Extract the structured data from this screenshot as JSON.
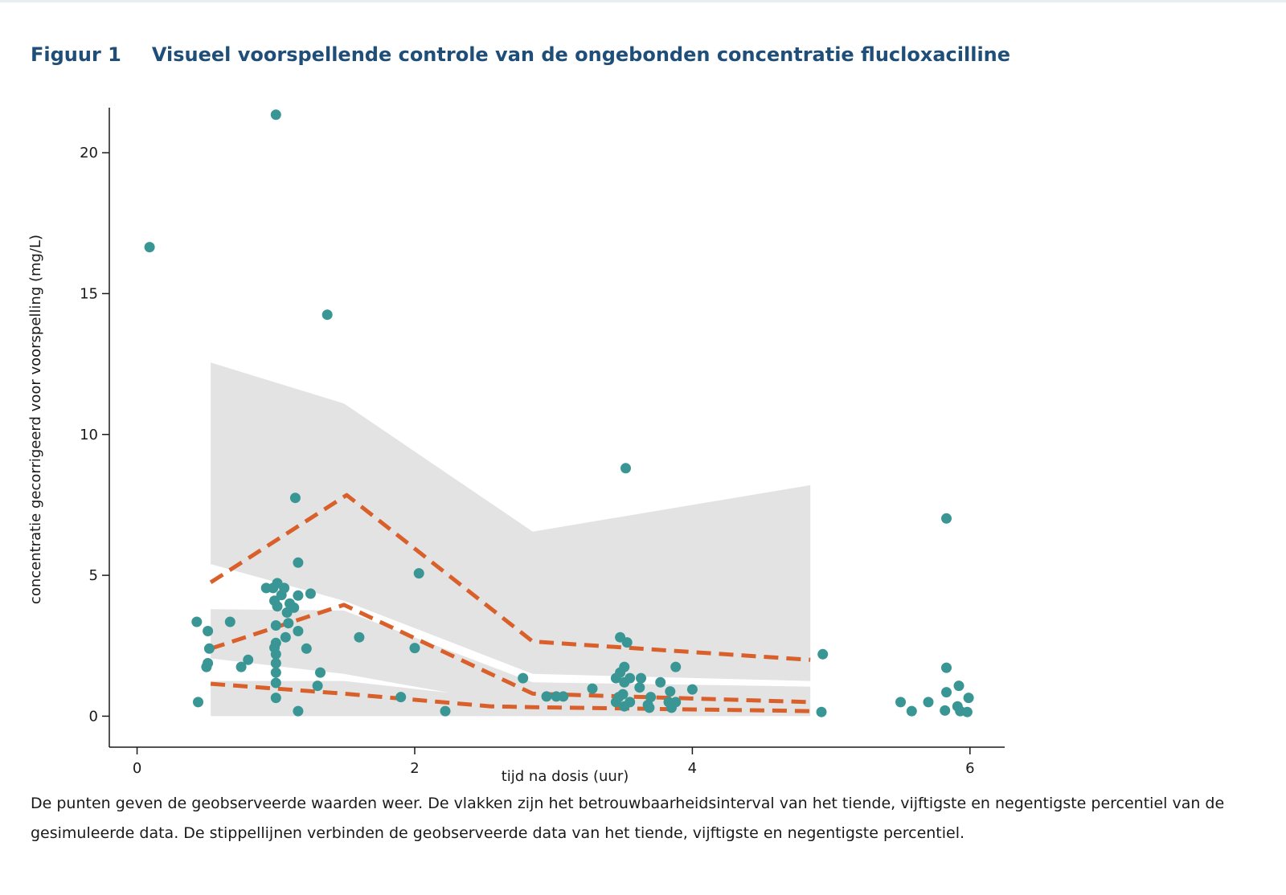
{
  "figure": {
    "label": "Figuur 1",
    "title": "Visueel voorspellende controle van de ongebonden concentratie flucloxacilline",
    "caption": "De punten geven de geobserveerde waarden weer. De vlakken zijn het betrouwbaarheidsinterval van het tiende, vijftigste en negentigste percentiel van de gesimuleerde data. De stippellijnen verbinden de geobserveerde data van het tiende, vijftigste en negentigste percentiel."
  },
  "colors": {
    "title": "#1f4e79",
    "points": "#3a9694",
    "band": "#e3e3e3",
    "dashed_lines": "#d9602b",
    "axis": "#1a1a1a"
  },
  "chart_data": {
    "type": "scatter",
    "xlabel": "tijd na dosis (uur)",
    "ylabel": "concentratie gecorrigeerd voor voorspelling (mg/L)",
    "xlim": [
      -0.2,
      6.25
    ],
    "ylim": [
      -1.1,
      21.6
    ],
    "xticks": [
      0,
      2,
      4,
      6
    ],
    "yticks": [
      0,
      5,
      10,
      15,
      20
    ],
    "grid": false,
    "legend": "none",
    "observed_points": [
      [
        0.09,
        16.65
      ],
      [
        1.0,
        21.35
      ],
      [
        1.37,
        14.25
      ],
      [
        3.52,
        8.8
      ],
      [
        5.83,
        7.02
      ],
      [
        1.14,
        7.75
      ],
      [
        1.16,
        5.45
      ],
      [
        2.03,
        5.07
      ],
      [
        0.93,
        4.55
      ],
      [
        0.98,
        4.55
      ],
      [
        1.01,
        4.72
      ],
      [
        1.06,
        4.55
      ],
      [
        1.04,
        4.3
      ],
      [
        1.1,
        4.0
      ],
      [
        1.16,
        4.28
      ],
      [
        1.25,
        4.35
      ],
      [
        0.99,
        4.1
      ],
      [
        1.01,
        3.9
      ],
      [
        1.13,
        3.85
      ],
      [
        1.08,
        3.68
      ],
      [
        1.09,
        3.3
      ],
      [
        1.0,
        3.22
      ],
      [
        1.16,
        3.02
      ],
      [
        0.43,
        3.35
      ],
      [
        0.67,
        3.35
      ],
      [
        0.51,
        3.02
      ],
      [
        1.07,
        2.8
      ],
      [
        1.6,
        2.8
      ],
      [
        3.48,
        2.8
      ],
      [
        3.53,
        2.62
      ],
      [
        1.0,
        2.6
      ],
      [
        0.99,
        2.43
      ],
      [
        0.52,
        2.4
      ],
      [
        1.22,
        2.4
      ],
      [
        2.0,
        2.42
      ],
      [
        4.94,
        2.2
      ],
      [
        1.0,
        2.2
      ],
      [
        0.8,
        2.0
      ],
      [
        0.51,
        1.88
      ],
      [
        0.5,
        1.75
      ],
      [
        0.75,
        1.75
      ],
      [
        1.0,
        1.88
      ],
      [
        3.51,
        1.75
      ],
      [
        3.88,
        1.75
      ],
      [
        5.83,
        1.72
      ],
      [
        1.0,
        1.55
      ],
      [
        1.32,
        1.55
      ],
      [
        3.48,
        1.55
      ],
      [
        2.78,
        1.35
      ],
      [
        3.45,
        1.35
      ],
      [
        3.55,
        1.35
      ],
      [
        3.63,
        1.35
      ],
      [
        3.77,
        1.2
      ],
      [
        3.51,
        1.2
      ],
      [
        1.0,
        1.18
      ],
      [
        1.3,
        1.08
      ],
      [
        3.28,
        0.98
      ],
      [
        3.62,
        1.02
      ],
      [
        4.0,
        0.95
      ],
      [
        5.92,
        1.08
      ],
      [
        3.84,
        0.88
      ],
      [
        5.83,
        0.85
      ],
      [
        3.5,
        0.78
      ],
      [
        2.95,
        0.7
      ],
      [
        3.02,
        0.7
      ],
      [
        3.07,
        0.7
      ],
      [
        1.9,
        0.68
      ],
      [
        3.47,
        0.68
      ],
      [
        3.7,
        0.68
      ],
      [
        5.99,
        0.65
      ],
      [
        1.0,
        0.65
      ],
      [
        3.45,
        0.5
      ],
      [
        3.55,
        0.5
      ],
      [
        3.83,
        0.5
      ],
      [
        3.88,
        0.5
      ],
      [
        5.5,
        0.5
      ],
      [
        5.7,
        0.5
      ],
      [
        0.44,
        0.5
      ],
      [
        3.68,
        0.4
      ],
      [
        5.91,
        0.35
      ],
      [
        3.51,
        0.35
      ],
      [
        3.69,
        0.3
      ],
      [
        3.85,
        0.3
      ],
      [
        1.16,
        0.18
      ],
      [
        2.22,
        0.18
      ],
      [
        4.93,
        0.15
      ],
      [
        5.58,
        0.18
      ],
      [
        5.82,
        0.2
      ],
      [
        5.93,
        0.18
      ],
      [
        5.98,
        0.15
      ]
    ],
    "bands": [
      {
        "x": [
          0.53,
          1.49,
          2.85,
          4.85
        ],
        "upper": [
          12.55,
          11.1,
          6.55,
          8.2
        ],
        "lower": [
          5.4,
          4.1,
          1.5,
          1.25
        ]
      },
      {
        "x": [
          0.53,
          1.49,
          2.85,
          4.85
        ],
        "upper": [
          3.8,
          3.75,
          1.2,
          1.05
        ],
        "lower": [
          2.05,
          1.5,
          0.3,
          0.2
        ]
      },
      {
        "x": [
          0.53,
          1.49,
          2.85,
          4.85
        ],
        "upper": [
          1.25,
          1.25,
          0.5,
          0.4
        ],
        "lower": [
          0.0,
          0.0,
          0.0,
          0.0
        ]
      }
    ],
    "series": [
      {
        "x": [
          0.53,
          1.51,
          2.85,
          4.85
        ],
        "values": [
          4.75,
          7.85,
          2.65,
          2.0
        ]
      },
      {
        "x": [
          0.53,
          1.49,
          2.85,
          4.85
        ],
        "values": [
          2.4,
          3.95,
          0.8,
          0.5
        ]
      },
      {
        "x": [
          0.53,
          1.49,
          2.55,
          2.85,
          4.85
        ],
        "values": [
          1.15,
          0.8,
          0.35,
          0.32,
          0.18
        ]
      }
    ]
  }
}
